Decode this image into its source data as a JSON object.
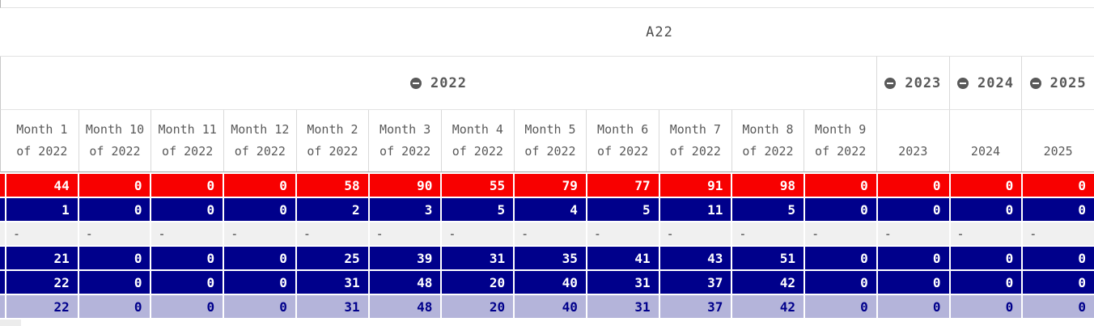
{
  "title": "A22",
  "colors": {
    "red": "#f80000",
    "navy": "#00008b",
    "lavender": "#b4b4da",
    "dash_bg": "#f0f0f0",
    "dash_text": "#404040",
    "lavender_text": "#00008b",
    "header_text": "#595959",
    "title_text": "#4d4d4d",
    "icon_gray": "#595959"
  },
  "column_groups": [
    {
      "label": "2022",
      "icon": "collapse-icon",
      "span": 12
    },
    {
      "label": "2023",
      "icon": "collapse-icon",
      "span": 1
    },
    {
      "label": "2024",
      "icon": "collapse-icon",
      "span": 1
    },
    {
      "label": "2025",
      "icon": "collapse-icon",
      "span": 1
    }
  ],
  "columns": [
    {
      "line1": "Month 1",
      "line2": "of 2022"
    },
    {
      "line1": "Month 10",
      "line2": "of 2022"
    },
    {
      "line1": "Month 11",
      "line2": "of 2022"
    },
    {
      "line1": "Month 12",
      "line2": "of 2022"
    },
    {
      "line1": "Month 2",
      "line2": "of 2022"
    },
    {
      "line1": "Month 3",
      "line2": "of 2022"
    },
    {
      "line1": "Month 4",
      "line2": "of 2022"
    },
    {
      "line1": "Month 5",
      "line2": "of 2022"
    },
    {
      "line1": "Month 6",
      "line2": "of 2022"
    },
    {
      "line1": "Month 7",
      "line2": "of 2022"
    },
    {
      "line1": "Month 8",
      "line2": "of 2022"
    },
    {
      "line1": "Month 9",
      "line2": "of 2022"
    },
    {
      "line1": "",
      "line2": "2023"
    },
    {
      "line1": "",
      "line2": "2024"
    },
    {
      "line1": "",
      "line2": "2025"
    }
  ],
  "rows": [
    {
      "style": "red",
      "values": [
        "44",
        "0",
        "0",
        "0",
        "58",
        "90",
        "55",
        "79",
        "77",
        "91",
        "98",
        "0",
        "0",
        "0",
        "0"
      ]
    },
    {
      "style": "navy",
      "values": [
        "1",
        "0",
        "0",
        "0",
        "2",
        "3",
        "5",
        "4",
        "5",
        "11",
        "5",
        "0",
        "0",
        "0",
        "0"
      ]
    },
    {
      "style": "dash",
      "values": [
        "-",
        "-",
        "-",
        "-",
        "-",
        "-",
        "-",
        "-",
        "-",
        "-",
        "-",
        "-",
        "-",
        "-",
        "-"
      ]
    },
    {
      "style": "navy",
      "values": [
        "21",
        "0",
        "0",
        "0",
        "25",
        "39",
        "31",
        "35",
        "41",
        "43",
        "51",
        "0",
        "0",
        "0",
        "0"
      ]
    },
    {
      "style": "navy",
      "values": [
        "22",
        "0",
        "0",
        "0",
        "31",
        "48",
        "20",
        "40",
        "31",
        "37",
        "42",
        "0",
        "0",
        "0",
        "0"
      ]
    },
    {
      "style": "lavender",
      "values": [
        "22",
        "0",
        "0",
        "0",
        "31",
        "48",
        "20",
        "40",
        "31",
        "37",
        "42",
        "0",
        "0",
        "0",
        "0"
      ]
    }
  ]
}
